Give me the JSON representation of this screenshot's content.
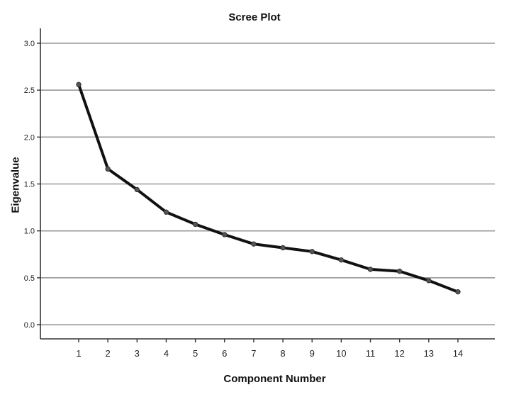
{
  "chart_data": {
    "type": "line",
    "title": "Scree Plot",
    "xlabel": "Component Number",
    "ylabel": "Eigenvalue",
    "categories": [
      "1",
      "2",
      "3",
      "4",
      "5",
      "6",
      "7",
      "8",
      "9",
      "10",
      "11",
      "12",
      "13",
      "14"
    ],
    "x": [
      1,
      2,
      3,
      4,
      5,
      6,
      7,
      8,
      9,
      10,
      11,
      12,
      13,
      14
    ],
    "values": [
      2.56,
      1.66,
      1.44,
      1.2,
      1.07,
      0.96,
      0.86,
      0.82,
      0.78,
      0.69,
      0.59,
      0.57,
      0.47,
      0.35
    ],
    "yticks": [
      "0.0",
      "0.5",
      "1.0",
      "1.5",
      "2.0",
      "2.5",
      "3.0"
    ],
    "ylim": [
      0,
      3.0
    ],
    "grid": "horizontal",
    "legend": "none",
    "colors": {
      "line": "#111111",
      "marker": "#555555",
      "grid": "#999999",
      "axis": "#333333"
    }
  }
}
